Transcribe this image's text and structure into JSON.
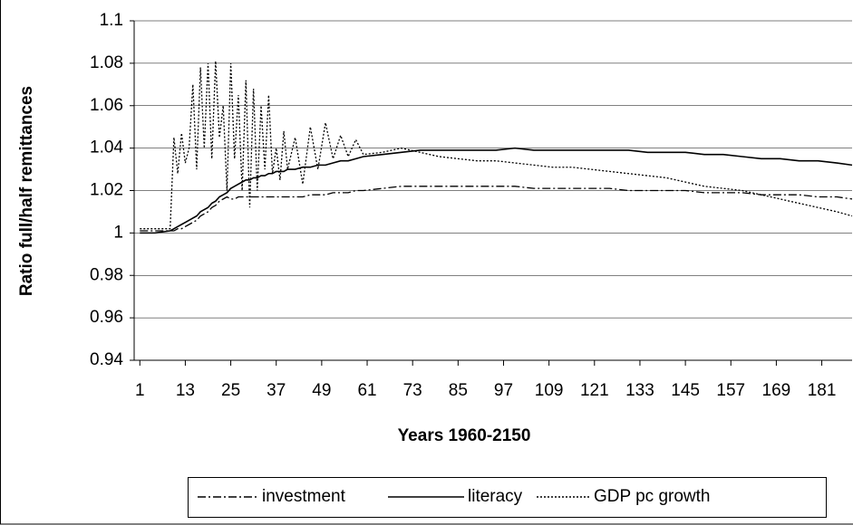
{
  "chart_data": {
    "type": "line",
    "x_label": "Years 1960-2150",
    "y_label": "Ratio full/half remittances",
    "x": [
      1,
      5,
      9,
      10,
      11,
      12,
      13,
      14,
      15,
      16,
      17,
      18,
      19,
      20,
      21,
      22,
      23,
      24,
      25,
      26,
      27,
      28,
      29,
      30,
      31,
      32,
      33,
      34,
      35,
      36,
      37,
      38,
      39,
      40,
      42,
      44,
      46,
      48,
      50,
      52,
      54,
      56,
      58,
      60,
      65,
      70,
      75,
      80,
      85,
      90,
      95,
      100,
      105,
      110,
      115,
      120,
      125,
      130,
      135,
      140,
      145,
      150,
      155,
      160,
      165,
      170,
      175,
      180,
      185,
      189
    ],
    "xlim": [
      -0.5,
      189
    ],
    "xticks": [
      1,
      13,
      25,
      37,
      49,
      61,
      73,
      85,
      97,
      109,
      121,
      133,
      145,
      157,
      169,
      181
    ],
    "ylim": [
      0.94,
      1.1
    ],
    "yticks": [
      0.94,
      0.96,
      0.98,
      1,
      1.02,
      1.04,
      1.06,
      1.08,
      1.1
    ],
    "grid": true,
    "legend": "bottom",
    "series": [
      {
        "name": "investment",
        "color": "#000000",
        "dash": "dashdot",
        "values": [
          1.001,
          1.001,
          1.001,
          1.001,
          1.002,
          1.002,
          1.003,
          1.004,
          1.005,
          1.006,
          1.008,
          1.009,
          1.01,
          1.012,
          1.013,
          1.015,
          1.016,
          1.017,
          1.016,
          1.016,
          1.017,
          1.017,
          1.017,
          1.017,
          1.017,
          1.017,
          1.017,
          1.017,
          1.017,
          1.017,
          1.017,
          1.017,
          1.017,
          1.017,
          1.017,
          1.017,
          1.018,
          1.018,
          1.018,
          1.019,
          1.019,
          1.019,
          1.02,
          1.02,
          1.021,
          1.022,
          1.022,
          1.022,
          1.022,
          1.022,
          1.022,
          1.022,
          1.021,
          1.021,
          1.021,
          1.021,
          1.021,
          1.02,
          1.02,
          1.02,
          1.02,
          1.019,
          1.019,
          1.019,
          1.018,
          1.018,
          1.018,
          1.017,
          1.017,
          1.016
        ]
      },
      {
        "name": "literacy",
        "color": "#000000",
        "dash": "solid",
        "values": [
          1,
          1,
          1.001,
          1.002,
          1.003,
          1.004,
          1.005,
          1.006,
          1.007,
          1.008,
          1.01,
          1.011,
          1.012,
          1.014,
          1.015,
          1.017,
          1.018,
          1.019,
          1.021,
          1.022,
          1.023,
          1.024,
          1.025,
          1.025,
          1.026,
          1.026,
          1.027,
          1.027,
          1.028,
          1.028,
          1.029,
          1.029,
          1.029,
          1.03,
          1.03,
          1.031,
          1.031,
          1.032,
          1.032,
          1.033,
          1.034,
          1.034,
          1.035,
          1.036,
          1.037,
          1.038,
          1.039,
          1.039,
          1.039,
          1.039,
          1.039,
          1.04,
          1.039,
          1.039,
          1.039,
          1.039,
          1.039,
          1.039,
          1.038,
          1.038,
          1.038,
          1.037,
          1.037,
          1.036,
          1.035,
          1.035,
          1.034,
          1.034,
          1.033,
          1.032
        ]
      },
      {
        "name": "GDP pc growth",
        "color": "#000000",
        "dash": "dotted",
        "values": [
          1.002,
          1.002,
          1.002,
          1.045,
          1.028,
          1.047,
          1.033,
          1.04,
          1.07,
          1.03,
          1.078,
          1.04,
          1.08,
          1.035,
          1.081,
          1.045,
          1.06,
          1.02,
          1.08,
          1.035,
          1.065,
          1.02,
          1.072,
          1.012,
          1.068,
          1.02,
          1.06,
          1.03,
          1.065,
          1.028,
          1.04,
          1.025,
          1.048,
          1.03,
          1.045,
          1.023,
          1.05,
          1.03,
          1.052,
          1.035,
          1.046,
          1.036,
          1.044,
          1.037,
          1.038,
          1.04,
          1.038,
          1.036,
          1.035,
          1.034,
          1.034,
          1.033,
          1.032,
          1.031,
          1.031,
          1.03,
          1.029,
          1.028,
          1.027,
          1.026,
          1.024,
          1.022,
          1.021,
          1.02,
          1.018,
          1.016,
          1.014,
          1.012,
          1.01,
          1.008
        ]
      }
    ]
  }
}
